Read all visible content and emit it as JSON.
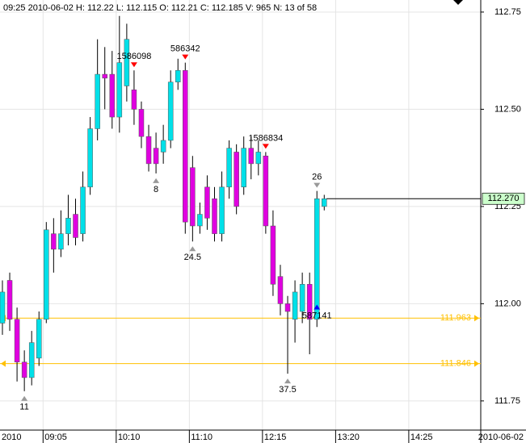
{
  "chart_data": {
    "type": "candlestick",
    "title": "09:25 2010-06-02 H: 112.22 L: 112.115 O: 112.21 C: 112.185 V: 965 N: 13 of 58",
    "date_label": "2010-06-02",
    "x": [
      0,
      1,
      2,
      3,
      4,
      5,
      6,
      7,
      8,
      9,
      10,
      11,
      12,
      13,
      14,
      15,
      16,
      17,
      18,
      19,
      20,
      21,
      22,
      23,
      24,
      25,
      26,
      27,
      28,
      29,
      30,
      31,
      32,
      33,
      34,
      35,
      36,
      37,
      38,
      39,
      40,
      41,
      42,
      43,
      44
    ],
    "open": [
      111.95,
      112.06,
      111.96,
      111.85,
      111.81,
      111.86,
      111.96,
      112.18,
      112.14,
      112.18,
      112.23,
      112.18,
      112.3,
      112.45,
      112.59,
      112.59,
      112.48,
      112.56,
      112.55,
      112.5,
      112.43,
      112.4,
      112.39,
      112.42,
      112.57,
      112.6,
      112.35,
      112.2,
      112.3,
      112.27,
      112.18,
      112.3,
      112.39,
      112.3,
      112.4,
      112.36,
      112.38,
      112.2,
      112.07,
      112.0,
      111.96,
      111.98,
      112.05,
      111.96,
      112.25
    ],
    "high": [
      112.06,
      112.08,
      111.99,
      111.88,
      111.93,
      111.98,
      112.21,
      112.22,
      112.24,
      112.28,
      112.27,
      112.34,
      112.48,
      112.68,
      112.66,
      112.65,
      112.74,
      112.72,
      112.6,
      112.52,
      112.46,
      112.44,
      112.46,
      112.6,
      112.63,
      112.62,
      112.38,
      112.26,
      112.33,
      112.3,
      112.34,
      112.42,
      112.41,
      112.43,
      112.43,
      112.42,
      112.39,
      112.24,
      112.1,
      112.02,
      112.06,
      112.08,
      112.08,
      112.29,
      112.28
    ],
    "low": [
      111.92,
      111.93,
      111.8,
      111.775,
      111.79,
      111.84,
      111.95,
      112.08,
      112.12,
      112.15,
      112.15,
      112.16,
      112.28,
      112.42,
      112.5,
      112.45,
      112.44,
      112.52,
      112.46,
      112.4,
      112.34,
      112.335,
      112.36,
      112.4,
      112.55,
      112.18,
      112.16,
      112.18,
      112.19,
      112.16,
      112.16,
      112.27,
      112.23,
      112.28,
      112.32,
      112.33,
      112.18,
      112.02,
      111.97,
      111.82,
      111.9,
      111.95,
      111.87,
      111.94,
      112.24
    ],
    "close": [
      112.03,
      111.96,
      111.85,
      111.81,
      111.9,
      111.96,
      112.19,
      112.14,
      112.18,
      112.22,
      112.17,
      112.3,
      112.45,
      112.59,
      112.58,
      112.48,
      112.62,
      112.68,
      112.5,
      112.43,
      112.36,
      112.36,
      112.42,
      112.57,
      112.6,
      112.21,
      112.2,
      112.23,
      112.22,
      112.18,
      112.3,
      112.4,
      112.25,
      112.4,
      112.36,
      112.39,
      112.2,
      112.05,
      112.0,
      111.98,
      112.03,
      112.05,
      111.96,
      112.27,
      112.27
    ],
    "up_color": "#00e0e8",
    "down_color": "#e000e0",
    "xlim": [
      -0.33,
      65.4
    ],
    "ylim": [
      111.675,
      112.781
    ],
    "xticks": [
      {
        "value": 0,
        "label": "2010"
      },
      {
        "value": 6,
        "label": "09:05"
      },
      {
        "value": 16,
        "label": "10:10"
      },
      {
        "value": 26,
        "label": "11:10"
      },
      {
        "value": 36,
        "label": "12:15"
      },
      {
        "value": 46,
        "label": "13:20"
      },
      {
        "value": 56,
        "label": "14:25"
      }
    ],
    "yticks": [
      111.75,
      {
        "value": 112,
        "label": "112.00"
      },
      112.25,
      {
        "value": 112.5,
        "label": "112.50"
      },
      112.75
    ],
    "grid": true,
    "hlines": [
      {
        "value": 111.963,
        "color": "#ffc000"
      },
      {
        "value": 111.846,
        "color": "#ffc000"
      }
    ],
    "last_price": {
      "value": 112.27,
      "label": "112.270",
      "color": "#ccffcc"
    },
    "annotations": [
      {
        "text": "11",
        "x": 3,
        "y": 111.775,
        "color": "#999999",
        "side": "below"
      },
      {
        "text": "8",
        "x": 21,
        "y": 112.335,
        "color": "#999999",
        "side": "below"
      },
      {
        "text": "24.5",
        "x": 26,
        "y": 112.16,
        "color": "#999999",
        "side": "below"
      },
      {
        "text": "37.5",
        "x": 39,
        "y": 111.82,
        "color": "#999999",
        "side": "below"
      },
      {
        "text": "26",
        "x": 43,
        "y": 112.29,
        "color": "#999999",
        "side": "above"
      },
      {
        "text": "1586098",
        "x": 18,
        "y": 112.6,
        "color": "#ff0000",
        "side": "above"
      },
      {
        "text": "586342",
        "x": 25,
        "y": 112.62,
        "color": "#ff0000",
        "side": "above"
      },
      {
        "text": "1586834",
        "x": 36,
        "y": 112.39,
        "color": "#ff0000",
        "side": "above"
      },
      {
        "text": "587141",
        "x": 43,
        "y": 112.01,
        "color": "#0000ff",
        "side": "below"
      }
    ]
  }
}
